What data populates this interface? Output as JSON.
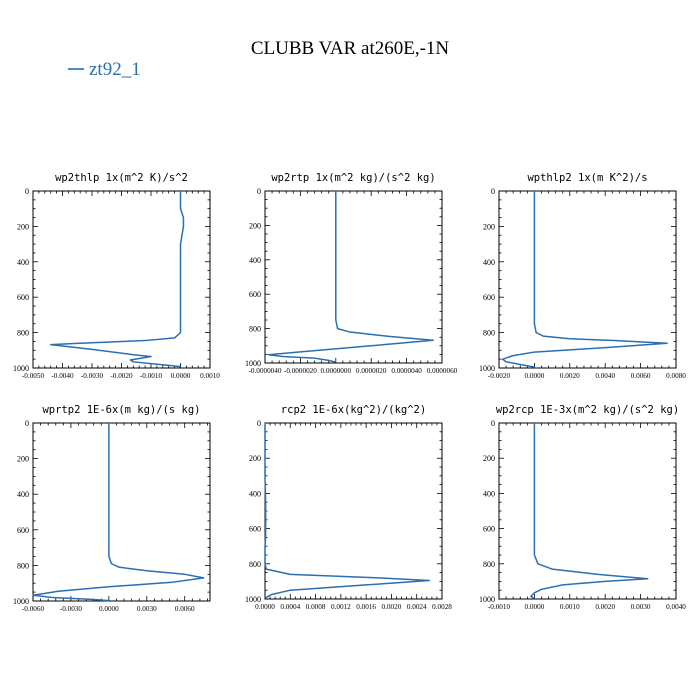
{
  "figure": {
    "title": "CLUBB VAR at260E,-1N",
    "legend_label": "zt92_1",
    "line_color": "#2a6fb0"
  },
  "chart_data": [
    {
      "type": "line",
      "title": "wp2thlp  1x(m^2 K)/s^2",
      "xlim": [
        -0.005,
        0.001
      ],
      "xticks": [
        "-0.0050",
        "-0.0040",
        "-0.0030",
        "-0.0020",
        "-0.0010",
        "0.0000",
        "0.0010"
      ],
      "ylim": [
        1000,
        0
      ],
      "yticks": [
        "0",
        "200",
        "400",
        "600",
        "800",
        "1000"
      ],
      "series": [
        {
          "x": [
            0.0,
            0.0,
            0.0001,
            0.0001,
            0.0,
            0.0,
            0.0,
            0.0,
            -0.0002,
            -0.0012,
            -0.0034,
            -0.0044,
            -0.003,
            -0.0016,
            -0.001,
            -0.0017,
            -0.0016,
            -0.001,
            -0.0004,
            0.0
          ],
          "y": [
            0,
            100,
            150,
            200,
            300,
            500,
            700,
            800,
            830,
            845,
            860,
            868,
            895,
            925,
            935,
            955,
            965,
            975,
            985,
            992
          ]
        }
      ]
    },
    {
      "type": "line",
      "title": "wp2rtp  1x(m^2 kg)/(s^2 kg)",
      "xlim": [
        -4e-06,
        6e-06
      ],
      "xticks": [
        "-0.0000040",
        "-0.0000020",
        "0.0000000",
        "0.0000020",
        "0.0000040",
        "0.0000060"
      ],
      "ylim": [
        1000,
        0
      ],
      "yticks": [
        "0",
        "200",
        "400",
        "600",
        "800",
        "1000"
      ],
      "series": [
        {
          "x": [
            0.0,
            0.0,
            0.0,
            0.0,
            1e-07,
            8e-07,
            3e-06,
            5.5e-06,
            2e-06,
            -2e-06,
            -3.8e-06,
            -3e-06,
            -1.2e-06,
            -4e-07,
            0.0
          ],
          "y": [
            0,
            200,
            500,
            750,
            800,
            820,
            845,
            868,
            900,
            935,
            952,
            962,
            972,
            985,
            995
          ]
        }
      ]
    },
    {
      "type": "line",
      "title": "wpthlp2  1x(m K^2)/s",
      "xlim": [
        -0.002,
        0.008
      ],
      "xticks": [
        "-0.0020",
        "0.0000",
        "0.0020",
        "0.0040",
        "0.0060",
        "0.0080"
      ],
      "ylim": [
        1000,
        0
      ],
      "yticks": [
        "0",
        "200",
        "400",
        "600",
        "800",
        "1000"
      ],
      "series": [
        {
          "x": [
            0.0,
            0.0,
            0.0,
            0.0,
            0.0001,
            0.0005,
            0.002,
            0.0045,
            0.0075,
            0.004,
            0.0,
            -0.0012,
            -0.0018,
            -0.0016,
            -0.0008,
            0.0
          ],
          "y": [
            0,
            200,
            500,
            750,
            800,
            820,
            835,
            845,
            860,
            885,
            910,
            930,
            950,
            965,
            980,
            995
          ]
        }
      ]
    },
    {
      "type": "line",
      "title": "wprtp2  1E-6x(m kg)/(s kg)",
      "xlim": [
        -0.006,
        0.008
      ],
      "xticks": [
        "-0.0060",
        "-0.0030",
        "0.0000",
        "0.0030",
        "0.0060"
      ],
      "ylim": [
        1000,
        0
      ],
      "yticks": [
        "0",
        "200",
        "400",
        "600",
        "800",
        "1000"
      ],
      "series": [
        {
          "x": [
            0.0,
            0.0,
            0.0,
            0.0,
            0.0002,
            0.0008,
            0.003,
            0.006,
            0.0075,
            0.005,
            0.0,
            -0.004,
            -0.006,
            -0.0045,
            -0.0015,
            0.0
          ],
          "y": [
            0,
            200,
            500,
            750,
            790,
            810,
            830,
            850,
            870,
            895,
            920,
            945,
            968,
            980,
            990,
            998
          ]
        }
      ]
    },
    {
      "type": "line",
      "title": "rcp2  1E-6x(kg^2)/(kg^2)",
      "xlim": [
        0.0,
        0.0028
      ],
      "xticks": [
        "0.0000",
        "0.0004",
        "0.0008",
        "0.0012",
        "0.0016",
        "0.0020",
        "0.0024",
        "0.0028"
      ],
      "ylim": [
        1000,
        0
      ],
      "yticks": [
        "0",
        "200",
        "400",
        "600",
        "800",
        "1000"
      ],
      "series": [
        {
          "x": [
            0.0,
            0.0,
            1e-05,
            1e-05,
            0.0,
            0.0,
            2e-05,
            0.0004,
            0.0018,
            0.0026,
            0.0016,
            0.0004,
            0.0001,
            0.0
          ],
          "y": [
            0,
            300,
            450,
            650,
            700,
            800,
            830,
            860,
            880,
            895,
            920,
            950,
            975,
            995
          ]
        }
      ]
    },
    {
      "type": "line",
      "title": "wp2rcp  1E-3x(m^2 kg)/(s^2 kg)",
      "xlim": [
        -0.001,
        0.004
      ],
      "xticks": [
        "-0.0010",
        "0.0000",
        "0.0010",
        "0.0020",
        "0.0030",
        "0.0040"
      ],
      "ylim": [
        1000,
        0
      ],
      "yticks": [
        "0",
        "200",
        "400",
        "600",
        "800",
        "1000"
      ],
      "series": [
        {
          "x": [
            0.0,
            0.0,
            0.0,
            0.0,
            0.0001,
            0.0005,
            0.0018,
            0.0032,
            0.002,
            0.0008,
            0.0002,
            0.0,
            -0.0001,
            0.0
          ],
          "y": [
            0,
            200,
            500,
            750,
            800,
            830,
            860,
            885,
            900,
            920,
            945,
            965,
            985,
            998
          ]
        }
      ]
    }
  ]
}
